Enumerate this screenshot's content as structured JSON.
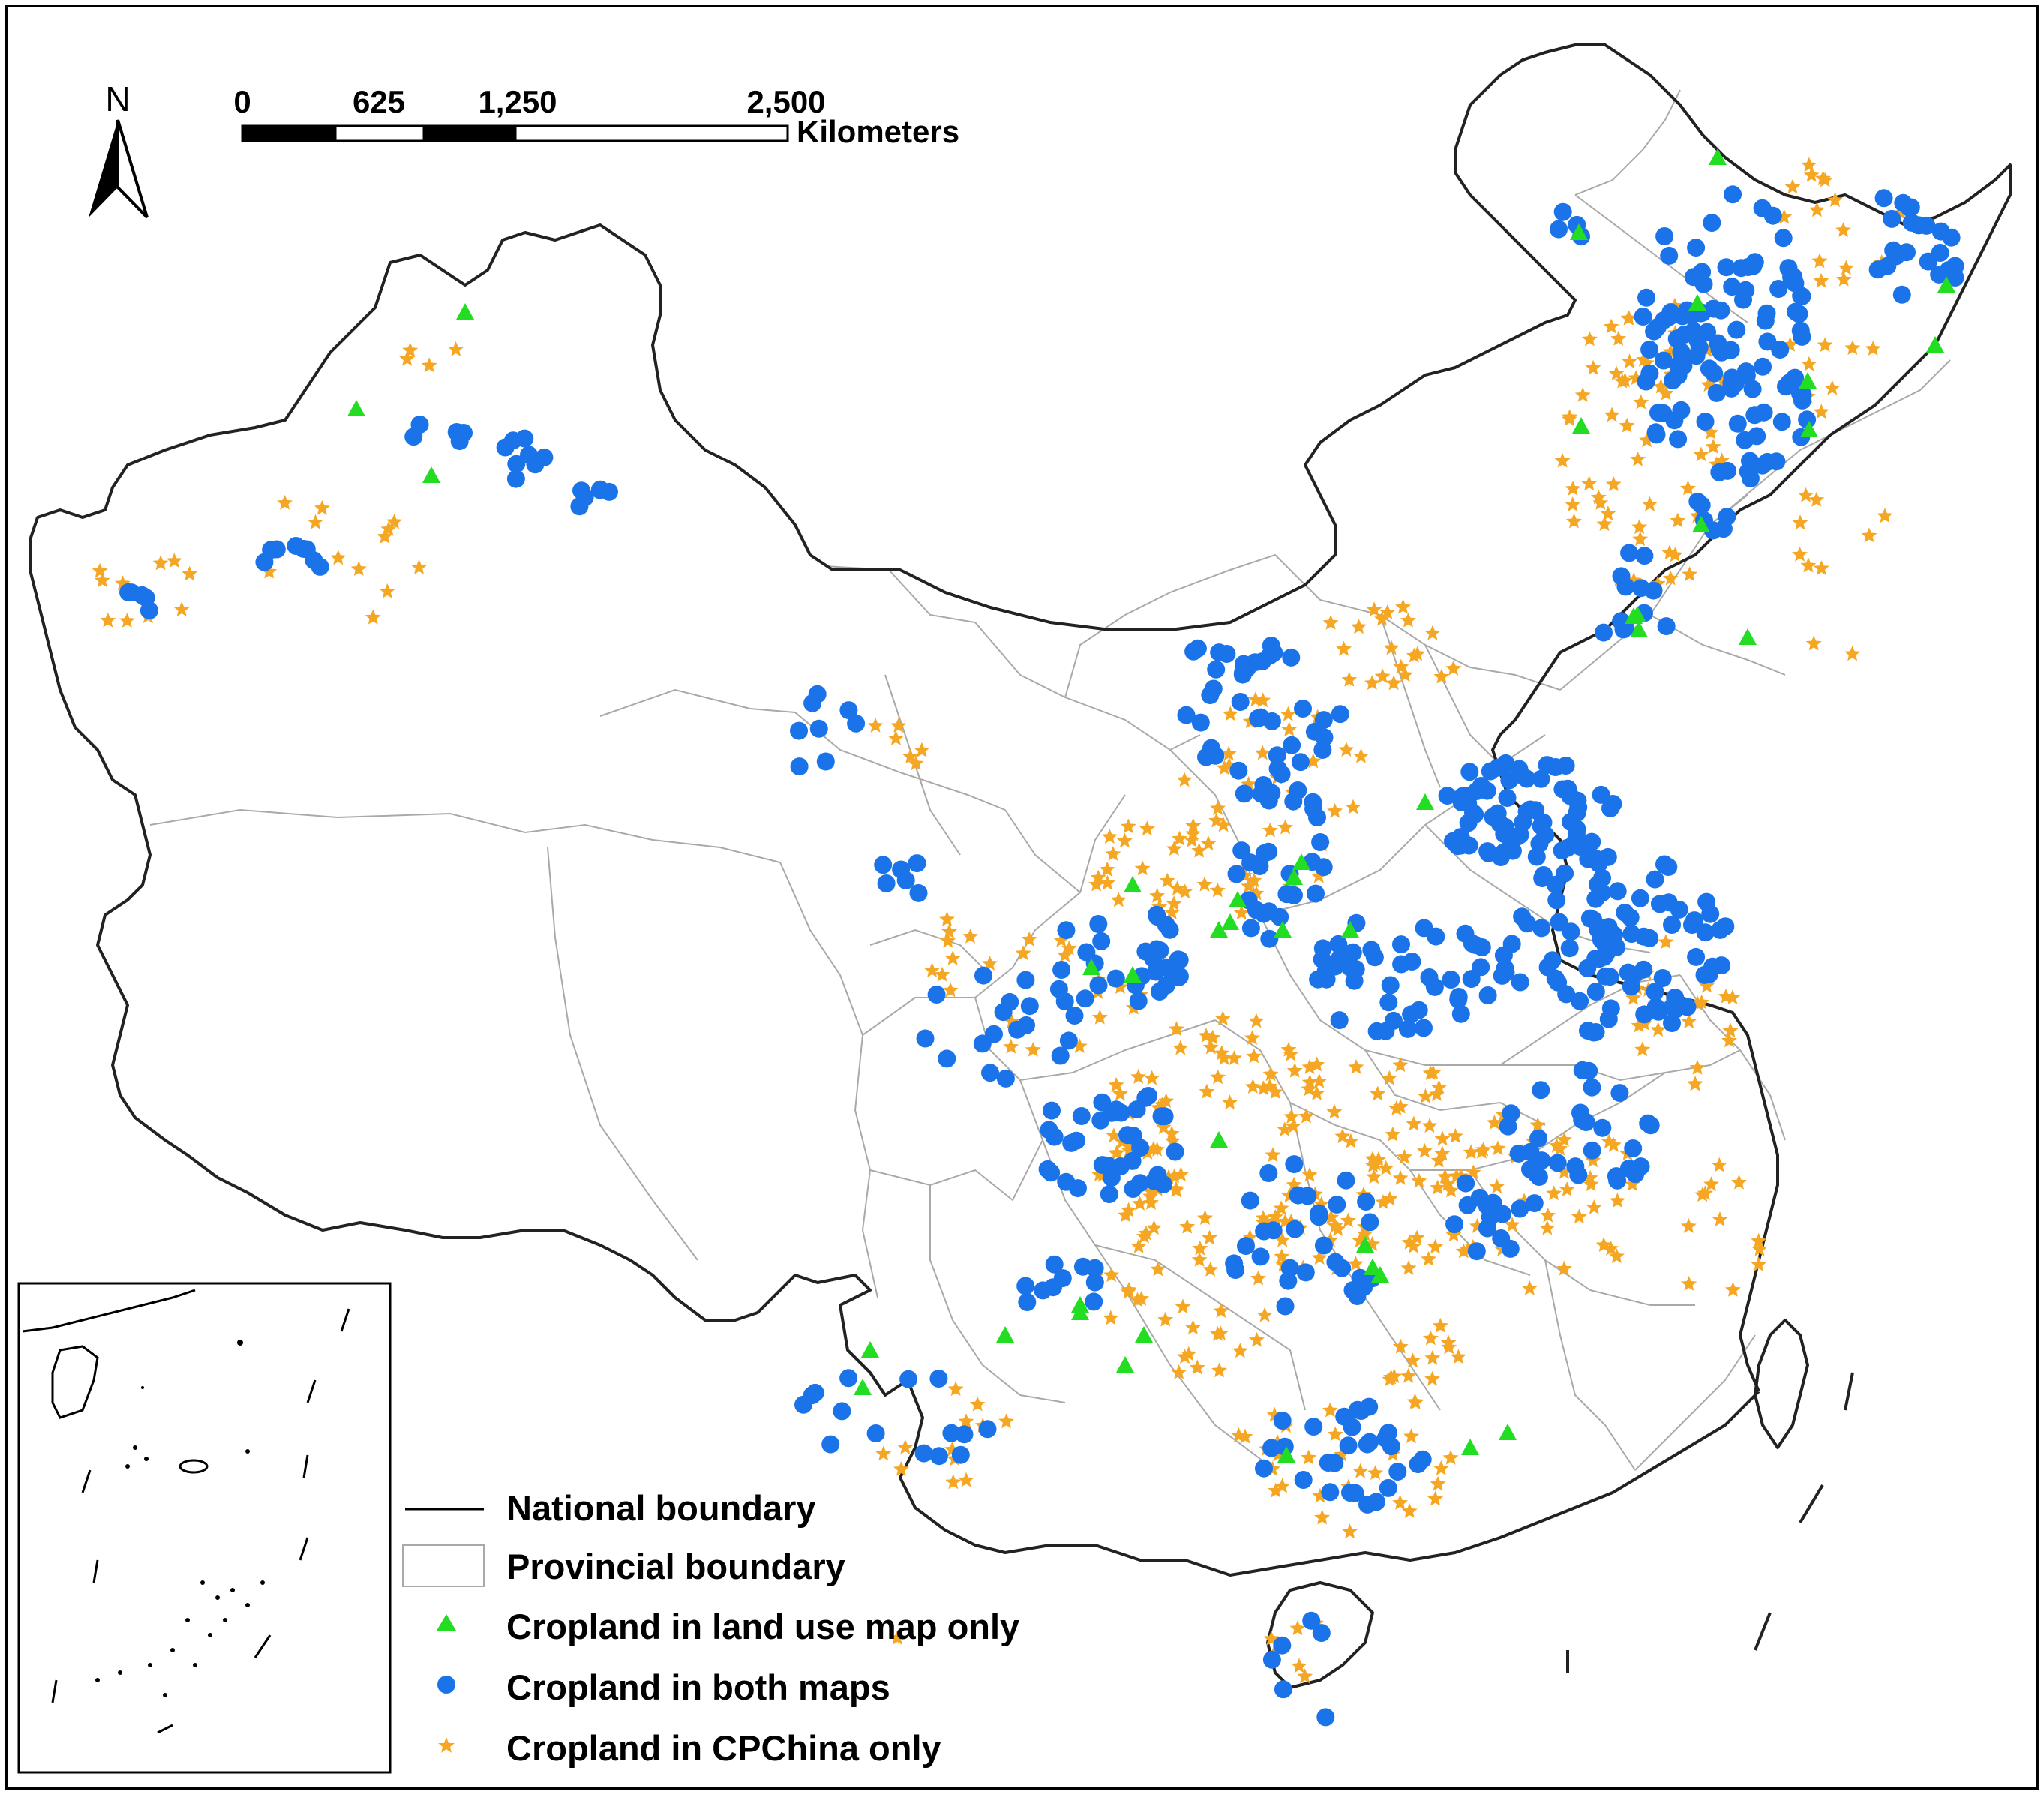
{
  "north_arrow": {
    "label": "N"
  },
  "scale_bar": {
    "ticks": [
      "0",
      "625",
      "1,250",
      "2,500"
    ],
    "unit": "Kilometers"
  },
  "legend": {
    "items": [
      {
        "key": "national",
        "label": "National boundary",
        "color": "#000000",
        "symbol": "line"
      },
      {
        "key": "provincial",
        "label": "Provincial boundary",
        "color": "#a9a9a9",
        "symbol": "box"
      },
      {
        "key": "landuse_only",
        "label": "Cropland in land use map only",
        "color": "#22dd22",
        "symbol": "triangle"
      },
      {
        "key": "both",
        "label": "Cropland in both maps",
        "color": "#1a73e8",
        "symbol": "circle"
      },
      {
        "key": "cpchina_only",
        "label": "Cropland in CPChina only",
        "color": "#f5a623",
        "symbol": "star"
      }
    ]
  }
}
